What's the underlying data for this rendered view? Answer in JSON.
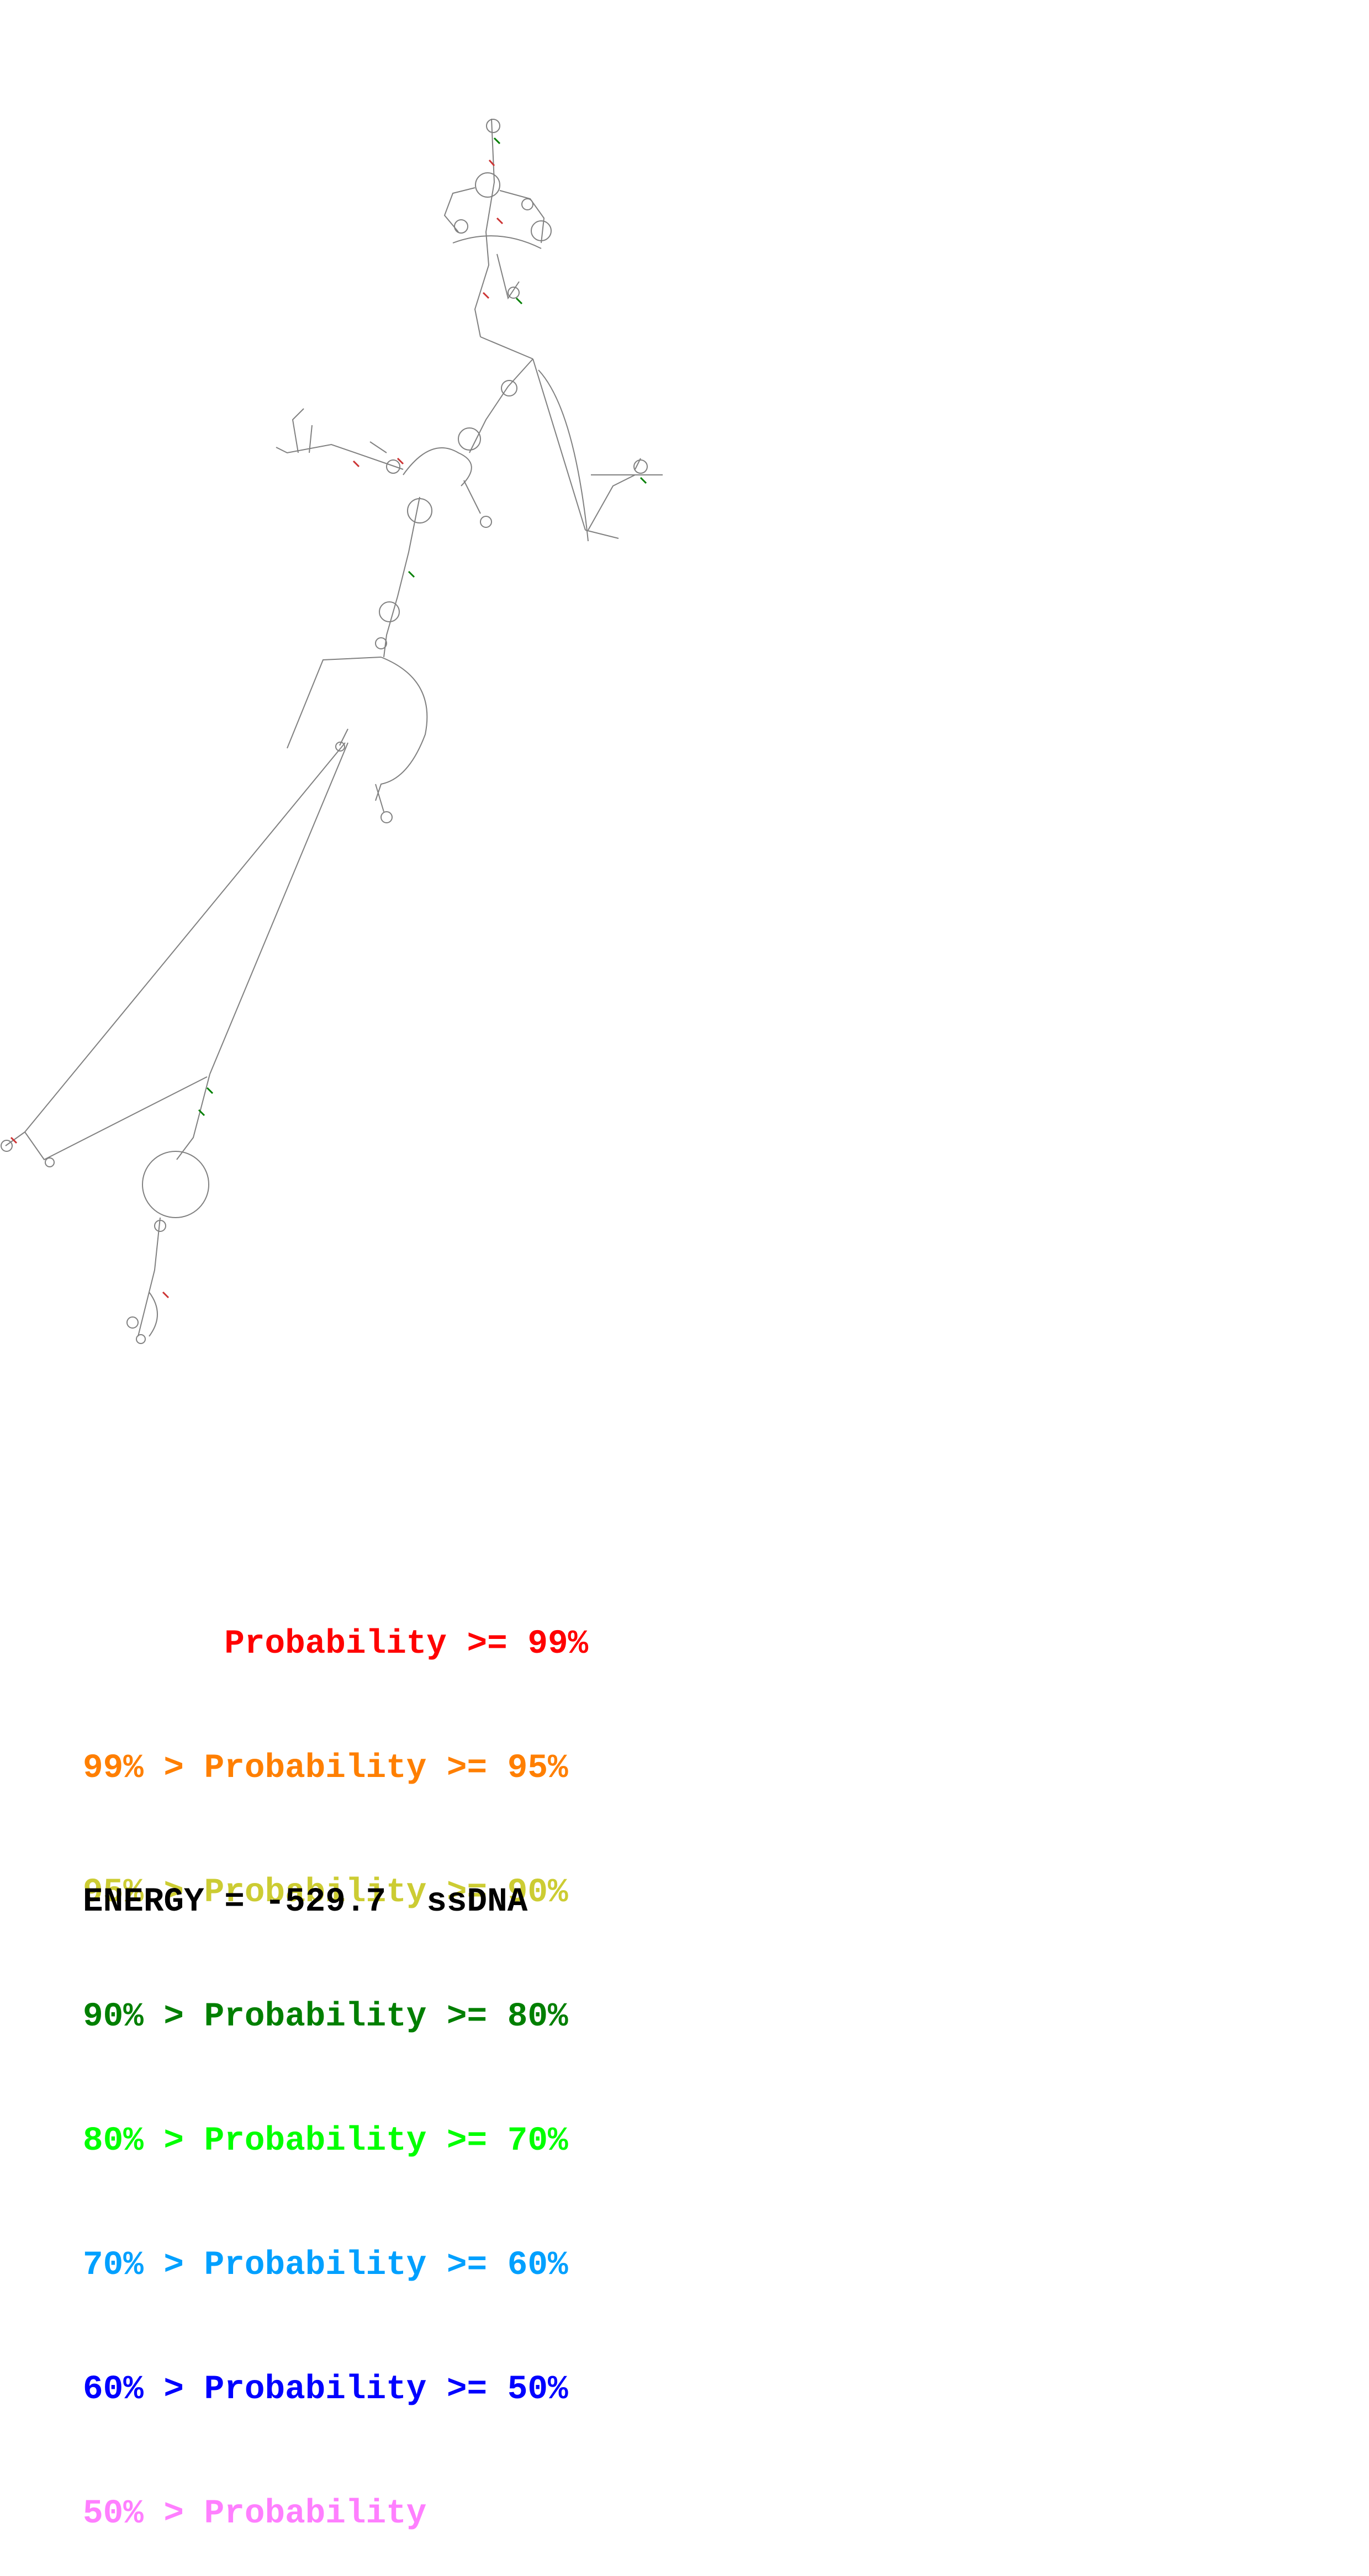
{
  "legend": [
    {
      "prefix": "       ",
      "text": "Probability >= 99%",
      "color": "#ff0000"
    },
    {
      "prefix": "99% > ",
      "text": "Probability >= 95%",
      "color": "#ff7f00"
    },
    {
      "prefix": "95% > ",
      "text": "Probability >= 90%",
      "color": "#cccc33"
    },
    {
      "prefix": "90% > ",
      "text": "Probability >= 80%",
      "color": "#007f00"
    },
    {
      "prefix": "80% > ",
      "text": "Probability >= 70%",
      "color": "#00ff00"
    },
    {
      "prefix": "70% > ",
      "text": "Probability >= 60%",
      "color": "#00a0ff"
    },
    {
      "prefix": "60% > ",
      "text": "Probability >= 50%",
      "color": "#0000ff"
    },
    {
      "prefix": "50% > ",
      "text": "Probability",
      "color": "#ff7fff"
    }
  ],
  "energy": {
    "label": "ENERGY = ",
    "value": "-529.7",
    "molecule": "ssDNA"
  },
  "colors": {
    "backbone": "#808080",
    "background": "#ffffff"
  }
}
